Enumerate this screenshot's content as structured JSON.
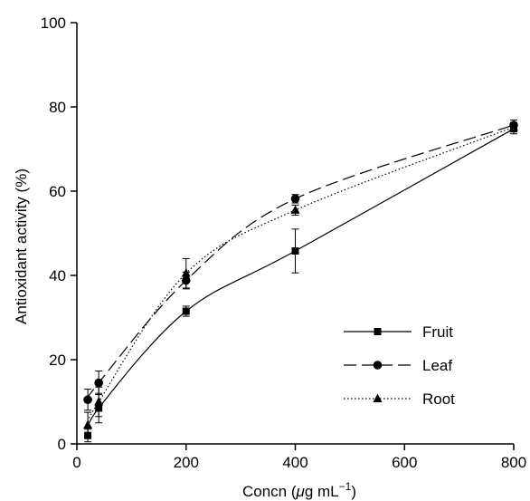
{
  "chart_data": {
    "type": "line",
    "xlabel_prefix": "Concn (",
    "xlabel_mu": "μ",
    "xlabel_unit": "g mL",
    "xlabel_sup": "−1",
    "xlabel_suffix": ")",
    "ylabel": "Antioxidant activity (%)",
    "xlim": [
      0,
      800
    ],
    "ylim": [
      0,
      100
    ],
    "x_ticks": [
      0,
      200,
      400,
      600,
      800
    ],
    "y_ticks": [
      0,
      20,
      40,
      60,
      80,
      100
    ],
    "grid": false,
    "legend_position": "bottom-right",
    "series": [
      {
        "name": "Fruit",
        "marker": "square",
        "line_style": "solid",
        "x": [
          20,
          40,
          200,
          400,
          800
        ],
        "y": [
          2,
          8.5,
          31.5,
          45.8,
          74.8
        ],
        "err": [
          1.5,
          3.5,
          1.2,
          5.2,
          1.2
        ]
      },
      {
        "name": "Leaf",
        "marker": "circle",
        "line_style": "dashed",
        "x": [
          20,
          40,
          200,
          400,
          800
        ],
        "y": [
          10.5,
          14.5,
          38.8,
          58.2,
          75.7
        ],
        "err": [
          2.5,
          2.8,
          2.0,
          1.0,
          1.2
        ]
      },
      {
        "name": "Root",
        "marker": "triangle",
        "line_style": "dotted",
        "x": [
          20,
          40,
          200,
          400,
          800
        ],
        "y": [
          4.5,
          10,
          40.5,
          55.5,
          75.2
        ],
        "err": [
          3.0,
          3.5,
          3.5,
          1.2,
          1.0
        ]
      }
    ]
  }
}
